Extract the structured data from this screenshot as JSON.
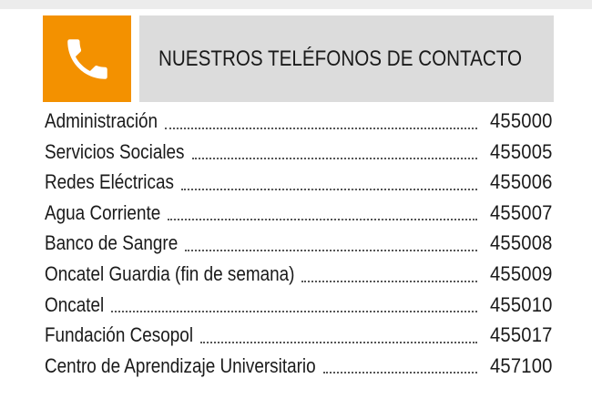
{
  "header": {
    "title": "NUESTROS TELÉFONOS DE CONTACTO",
    "icon": "phone-icon",
    "accent_color": "#f39100",
    "title_background": "#dcdcdc"
  },
  "contacts": [
    {
      "name": "Administración",
      "number": "455000"
    },
    {
      "name": "Servicios Sociales",
      "number": "455005"
    },
    {
      "name": "Redes Eléctricas",
      "number": "455006"
    },
    {
      "name": "Agua Corriente",
      "number": "455007"
    },
    {
      "name": "Banco de Sangre",
      "number": "455008"
    },
    {
      "name": "Oncatel Guardia (fin de semana)",
      "number": "455009"
    },
    {
      "name": "Oncatel",
      "number": "455010"
    },
    {
      "name": "Fundación Cesopol",
      "number": "455017"
    },
    {
      "name": "Centro de Aprendizaje Universitario",
      "number": "457100"
    }
  ]
}
